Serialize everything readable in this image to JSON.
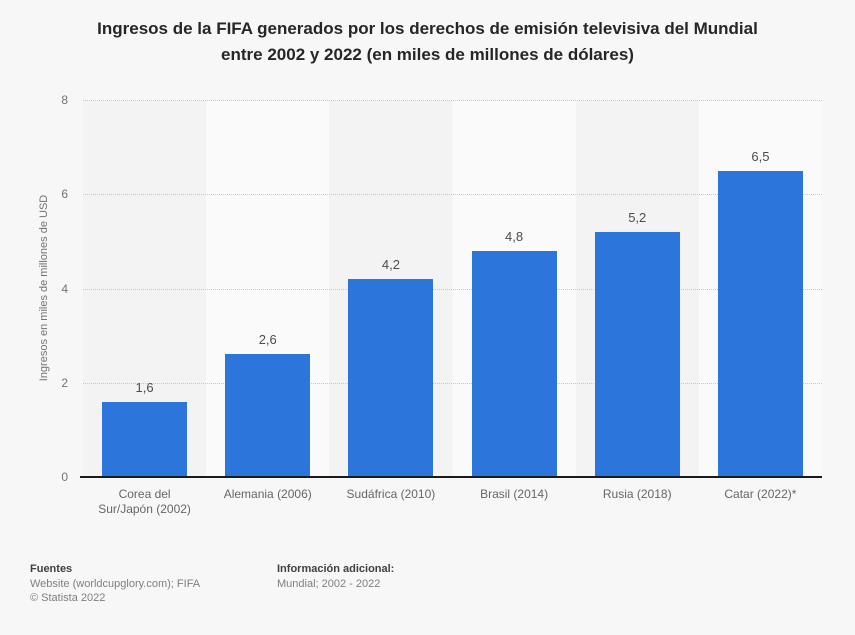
{
  "page": {
    "background": "#f7f7f7"
  },
  "title": {
    "line1": "Ingresos de la FIFA generados por los derechos de emisión televisiva del Mundial",
    "line2": "entre 2002 y 2022 (en miles de millones de dólares)"
  },
  "chart_data": {
    "type": "bar",
    "title": "Ingresos de la FIFA generados por los derechos de emisión televisiva del Mundial entre 2002 y 2022 (en miles de millones de dólares)",
    "categories": [
      "Corea del Sur/Japón (2002)",
      "Alemania (2006)",
      "Sudáfrica (2010)",
      "Brasil (2014)",
      "Rusia (2018)",
      "Catar (2022)*"
    ],
    "categories_display": [
      [
        "Corea del",
        "Sur/Japón (2002)"
      ],
      [
        "Alemania (2006)"
      ],
      [
        "Sudáfrica (2010)"
      ],
      [
        "Brasil (2014)"
      ],
      [
        "Rusia (2018)"
      ],
      [
        "Catar (2022)*"
      ]
    ],
    "values": [
      1.6,
      2.6,
      4.2,
      4.8,
      5.2,
      6.5
    ],
    "value_labels": [
      "1,6",
      "2,6",
      "4,2",
      "4,8",
      "5,2",
      "6,5"
    ],
    "xlabel": "",
    "ylabel": "Ingresos en miles de millones de USD",
    "ylim": [
      0,
      8
    ],
    "yticks": [
      0,
      2,
      4,
      6,
      8
    ],
    "grid": "horizontal-dotted",
    "legend": "none",
    "bar_color": "#2c75db",
    "band_colors": [
      "#f3f3f3",
      "#fafafa"
    ],
    "gridline_color": "#c9c9c9",
    "axis_line_color": "#1a1a1a"
  },
  "footer": {
    "sources_label": "Fuentes",
    "sources_line": "Website (worldcupglory.com); FIFA",
    "copyright": "© Statista 2022",
    "info_label": "Información adicional:",
    "info_value": "Mundial; 2002 - 2022"
  }
}
